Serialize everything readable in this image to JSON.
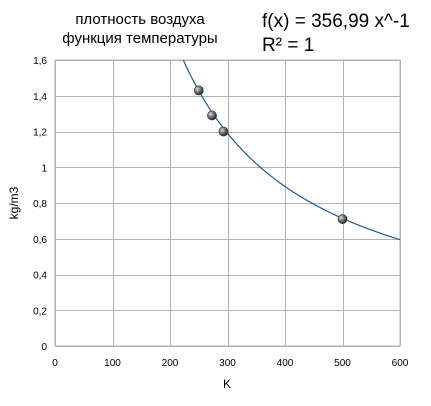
{
  "chart_data": {
    "type": "scatter",
    "title_lines": [
      "плотность воздуха",
      "функция температуры"
    ],
    "trendline": {
      "equation": "f(x) = 356,99 x^-1",
      "r_squared": "R² = 1",
      "coefficient": 356.99,
      "exponent": -1,
      "color": "#1f5a9e"
    },
    "xlabel": "K",
    "ylabel": "kg/m3",
    "xlim": [
      0,
      600
    ],
    "ylim": [
      0,
      1.6
    ],
    "x_ticks": [
      0,
      100,
      200,
      300,
      400,
      500,
      600
    ],
    "x_tick_labels": [
      "0",
      "100",
      "200",
      "300",
      "400",
      "500",
      "600"
    ],
    "y_ticks": [
      0,
      0.2,
      0.4,
      0.6,
      0.8,
      1.0,
      1.2,
      1.4,
      1.6
    ],
    "y_tick_labels": [
      "0",
      "0,2",
      "0,4",
      "0,6",
      "0,8",
      "1",
      "1,2",
      "1,4",
      "1,6"
    ],
    "grid": true,
    "points": [
      {
        "x": 250,
        "y": 1.43
      },
      {
        "x": 273,
        "y": 1.29
      },
      {
        "x": 293,
        "y": 1.2
      },
      {
        "x": 500,
        "y": 0.71
      }
    ],
    "colors": {
      "grid": "#b3b3b3",
      "plot_border": "#b3b3b3",
      "marker": "#3a3a3a"
    }
  }
}
